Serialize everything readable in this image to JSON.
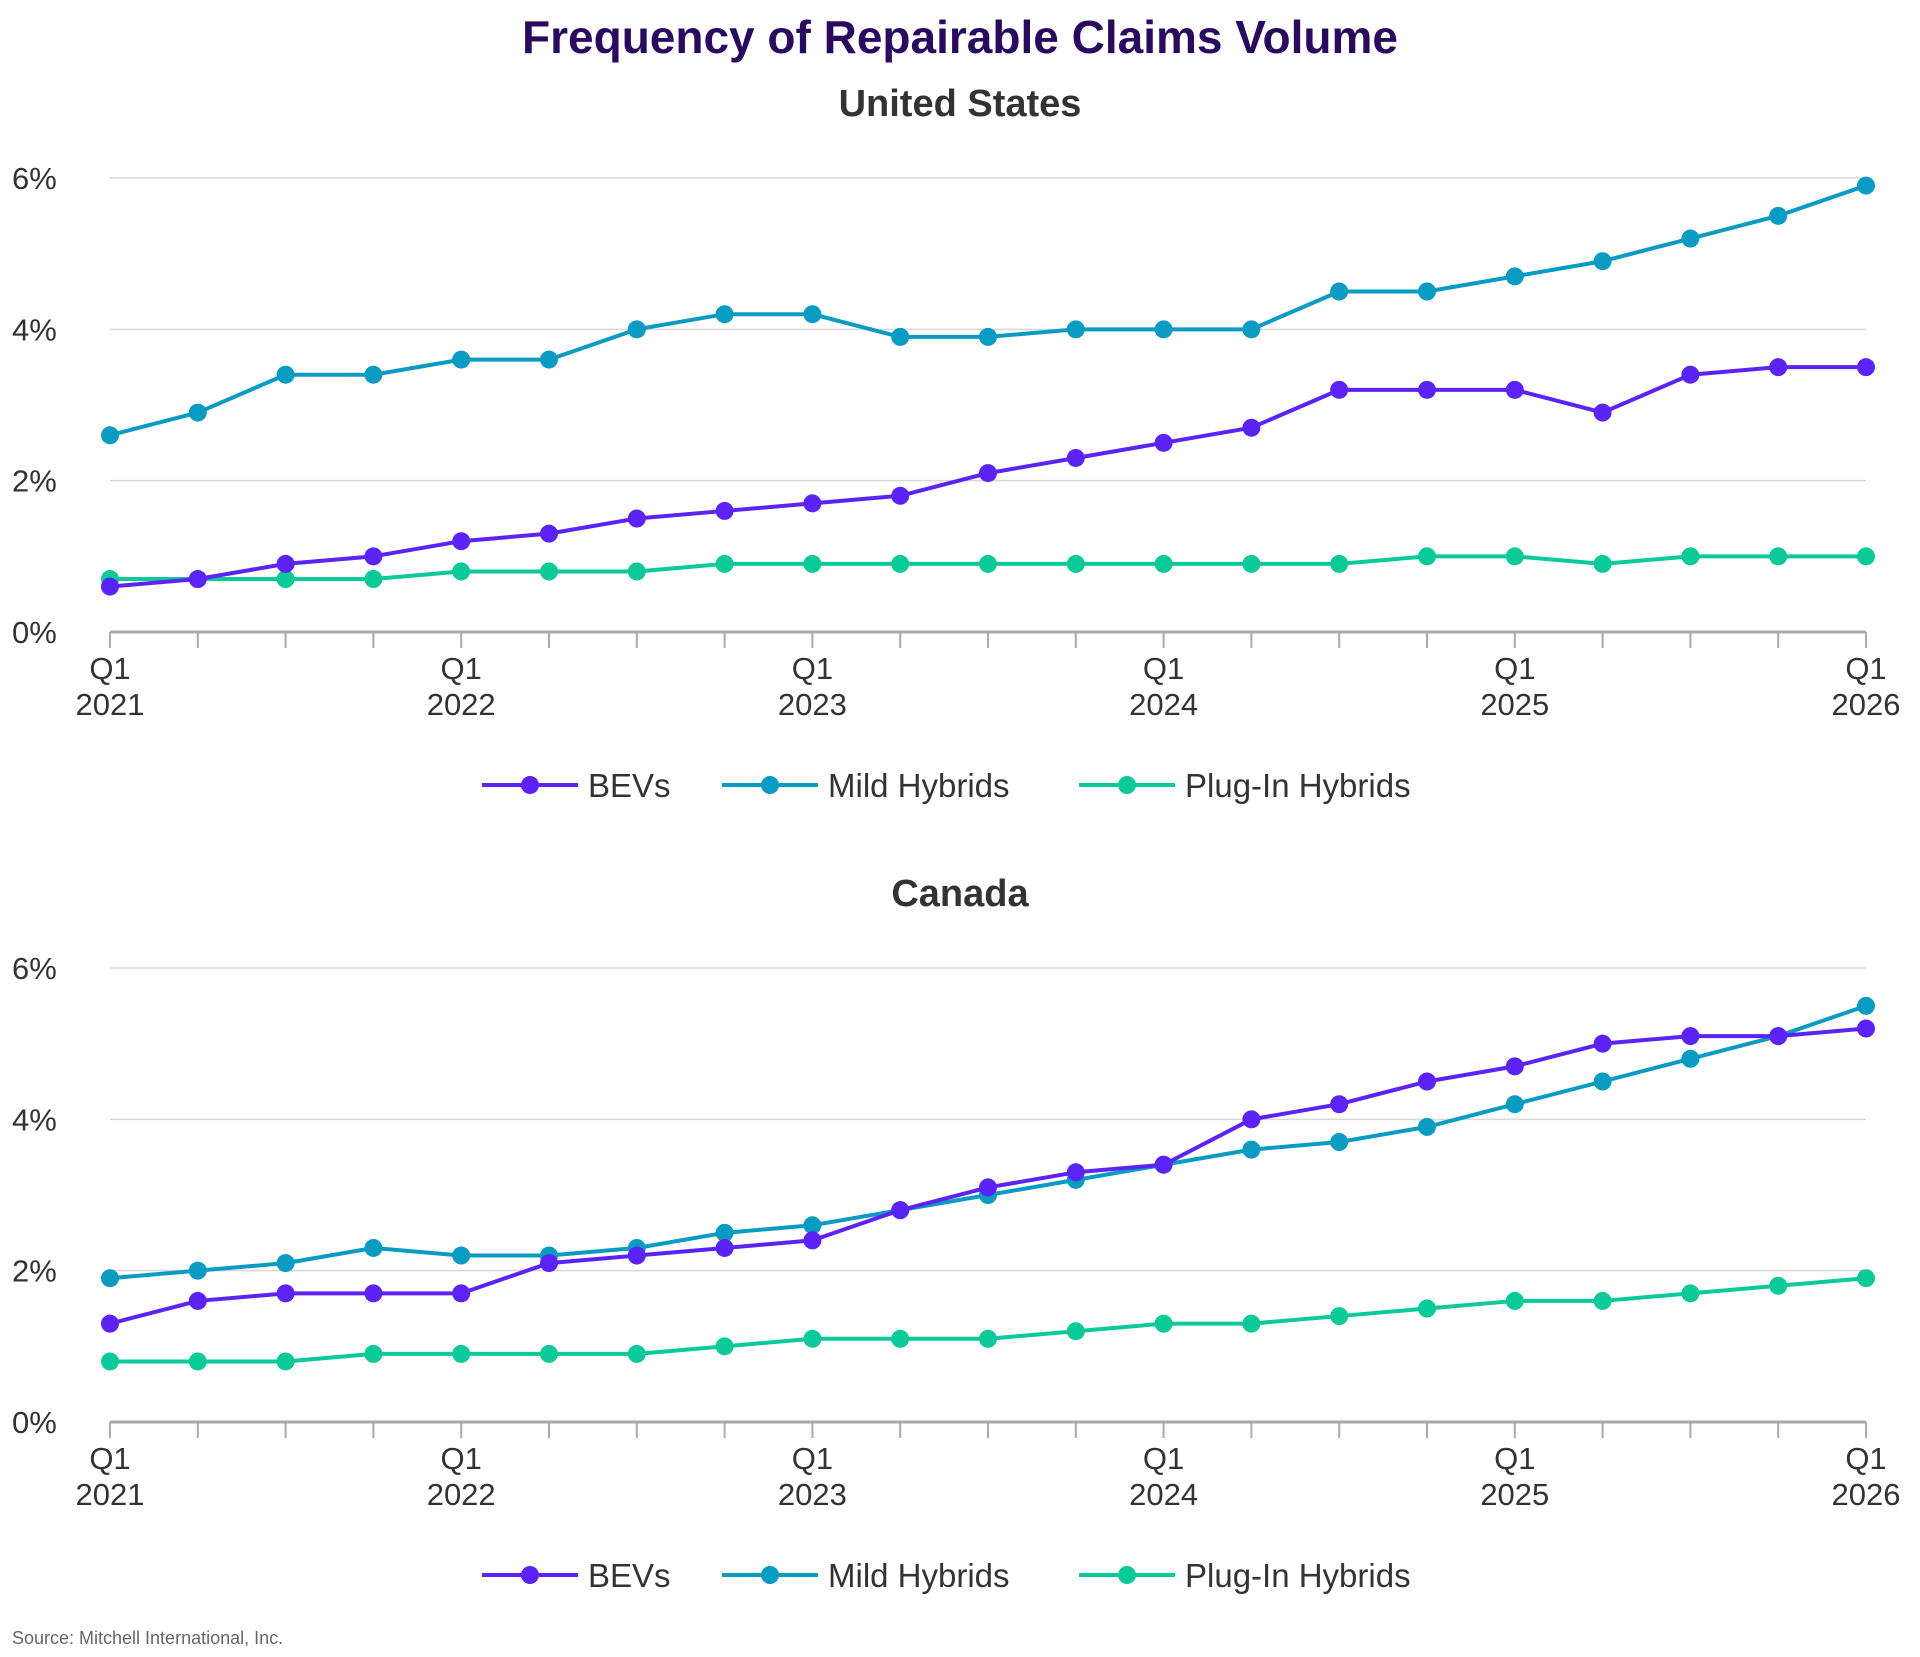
{
  "title": "Frequency of Repairable Claims Volume",
  "source": "Source: Mitchell International, Inc.",
  "colors": {
    "title": "#2a0a5e",
    "BEVs": "#5b23f5",
    "Mild Hybrids": "#0a9bc2",
    "Plug-In Hybrids": "#0cc99a",
    "grid": "#d9d9d9",
    "axis": "#aaaaaa"
  },
  "chart_data": [
    {
      "type": "line",
      "title": "United States",
      "x": [
        "Q1 2021",
        "Q2 2021",
        "Q3 2021",
        "Q4 2021",
        "Q1 2022",
        "Q2 2022",
        "Q3 2022",
        "Q4 2022",
        "Q1 2023",
        "Q2 2023",
        "Q3 2023",
        "Q4 2023",
        "Q1 2024",
        "Q2 2024",
        "Q3 2024",
        "Q4 2024",
        "Q1 2025",
        "Q2 2025",
        "Q3 2025",
        "Q4 2025",
        "Q1 2026"
      ],
      "x_tick_labels": [
        {
          "q": "Q1",
          "year": "2021"
        },
        {
          "q": "Q1",
          "year": "2022"
        },
        {
          "q": "Q1",
          "year": "2023"
        },
        {
          "q": "Q1",
          "year": "2024"
        },
        {
          "q": "Q1",
          "year": "2025"
        },
        {
          "q": "Q1",
          "year": "2026"
        }
      ],
      "y_ticks": [
        "0%",
        "2%",
        "4%",
        "6%"
      ],
      "ylim": [
        0,
        6
      ],
      "y_unit": "%",
      "grid": true,
      "legend": "bottom-center",
      "series": [
        {
          "name": "BEVs",
          "values": [
            0.6,
            0.7,
            0.9,
            1.0,
            1.2,
            1.3,
            1.5,
            1.6,
            1.7,
            1.8,
            2.1,
            2.3,
            2.5,
            2.7,
            3.2,
            3.2,
            3.2,
            2.9,
            3.4,
            3.5,
            3.5
          ]
        },
        {
          "name": "Mild Hybrids",
          "values": [
            2.6,
            2.9,
            3.4,
            3.4,
            3.6,
            3.6,
            4.0,
            4.2,
            4.2,
            3.9,
            3.9,
            4.0,
            4.0,
            4.0,
            4.5,
            4.5,
            4.7,
            4.9,
            5.2,
            5.5,
            5.9
          ]
        },
        {
          "name": "Plug-In Hybrids",
          "values": [
            0.7,
            0.7,
            0.7,
            0.7,
            0.8,
            0.8,
            0.8,
            0.9,
            0.9,
            0.9,
            0.9,
            0.9,
            0.9,
            0.9,
            0.9,
            1.0,
            1.0,
            0.9,
            1.0,
            1.0,
            1.0
          ]
        }
      ]
    },
    {
      "type": "line",
      "title": "Canada",
      "x": [
        "Q1 2021",
        "Q2 2021",
        "Q3 2021",
        "Q4 2021",
        "Q1 2022",
        "Q2 2022",
        "Q3 2022",
        "Q4 2022",
        "Q1 2023",
        "Q2 2023",
        "Q3 2023",
        "Q4 2023",
        "Q1 2024",
        "Q2 2024",
        "Q3 2024",
        "Q4 2024",
        "Q1 2025",
        "Q2 2025",
        "Q3 2025",
        "Q4 2025",
        "Q1 2026"
      ],
      "x_tick_labels": [
        {
          "q": "Q1",
          "year": "2021"
        },
        {
          "q": "Q1",
          "year": "2022"
        },
        {
          "q": "Q1",
          "year": "2023"
        },
        {
          "q": "Q1",
          "year": "2024"
        },
        {
          "q": "Q1",
          "year": "2025"
        },
        {
          "q": "Q1",
          "year": "2026"
        }
      ],
      "y_ticks": [
        "0%",
        "2%",
        "4%",
        "6%"
      ],
      "ylim": [
        0,
        6
      ],
      "y_unit": "%",
      "grid": true,
      "legend": "bottom-center",
      "series": [
        {
          "name": "BEVs",
          "values": [
            1.3,
            1.6,
            1.7,
            1.7,
            1.7,
            2.1,
            2.2,
            2.3,
            2.4,
            2.8,
            3.1,
            3.3,
            3.4,
            4.0,
            4.2,
            4.5,
            4.7,
            5.0,
            5.1,
            5.1,
            5.2
          ]
        },
        {
          "name": "Mild Hybrids",
          "values": [
            1.9,
            2.0,
            2.1,
            2.3,
            2.2,
            2.2,
            2.3,
            2.5,
            2.6,
            2.8,
            3.0,
            3.2,
            3.4,
            3.6,
            3.7,
            3.9,
            4.2,
            4.5,
            4.8,
            5.1,
            5.5
          ]
        },
        {
          "name": "Plug-In Hybrids",
          "values": [
            0.8,
            0.8,
            0.8,
            0.9,
            0.9,
            0.9,
            0.9,
            1.0,
            1.1,
            1.1,
            1.1,
            1.2,
            1.3,
            1.3,
            1.4,
            1.5,
            1.6,
            1.6,
            1.7,
            1.8,
            1.9
          ]
        }
      ]
    }
  ]
}
